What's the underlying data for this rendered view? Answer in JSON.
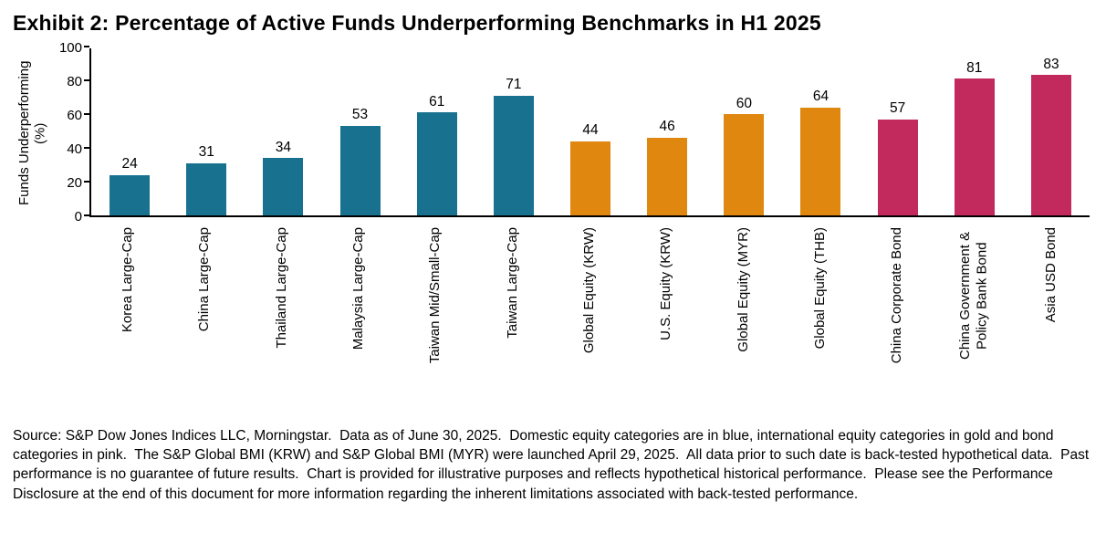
{
  "page": {
    "title": "Exhibit 2: Percentage of Active Funds Underperforming Benchmarks in H1 2025"
  },
  "chart_data": {
    "type": "bar",
    "title": "Exhibit 2: Percentage of Active Funds Underperforming Benchmarks in H1 2025",
    "xlabel": "",
    "ylabel": "Funds Underperforming (%)",
    "ylim": [
      0,
      100
    ],
    "yticks": [
      0,
      20,
      40,
      60,
      80,
      100
    ],
    "grid": false,
    "legend_position": "none",
    "categories": [
      "Korea Large-Cap",
      "China Large-Cap",
      "Thailand Large-Cap",
      "Malaysia Large-Cap",
      "Taiwan Mid/Small-Cap",
      "Taiwan Large-Cap",
      "Global Equity (KRW)",
      "U.S. Equity (KRW)",
      "Global Equity (MYR)",
      "Global Equity (THB)",
      "China Corporate Bond",
      "China Government & Policy Bank Bond",
      "Asia USD Bond"
    ],
    "values": [
      24,
      31,
      34,
      53,
      61,
      71,
      44,
      46,
      60,
      64,
      57,
      81,
      83
    ],
    "colors": [
      "#17718F",
      "#17718F",
      "#17718F",
      "#17718F",
      "#17718F",
      "#17718F",
      "#E0870F",
      "#E0870F",
      "#E0870F",
      "#E0870F",
      "#C22A5D",
      "#C22A5D",
      "#C22A5D"
    ],
    "palette": {
      "domestic_equity_blue": "#17718F",
      "international_equity_gold": "#E0870F",
      "bond_pink": "#C22A5D"
    }
  },
  "source_note": "Source: S&P Dow Jones Indices LLC, Morningstar.  Data as of June 30, 2025.  Domestic equity categories are in blue, international equity categories in gold and bond categories in pink.  The S&P Global BMI (KRW) and S&P Global BMI (MYR) were launched April 29, 2025.  All data prior to such date is back-tested hypothetical data.  Past performance is no guarantee of future results.  Chart is provided for illustrative purposes and reflects hypothetical historical performance.  Please see the Performance Disclosure at the end of this document for more information regarding the inherent limitations associated with back-tested performance."
}
